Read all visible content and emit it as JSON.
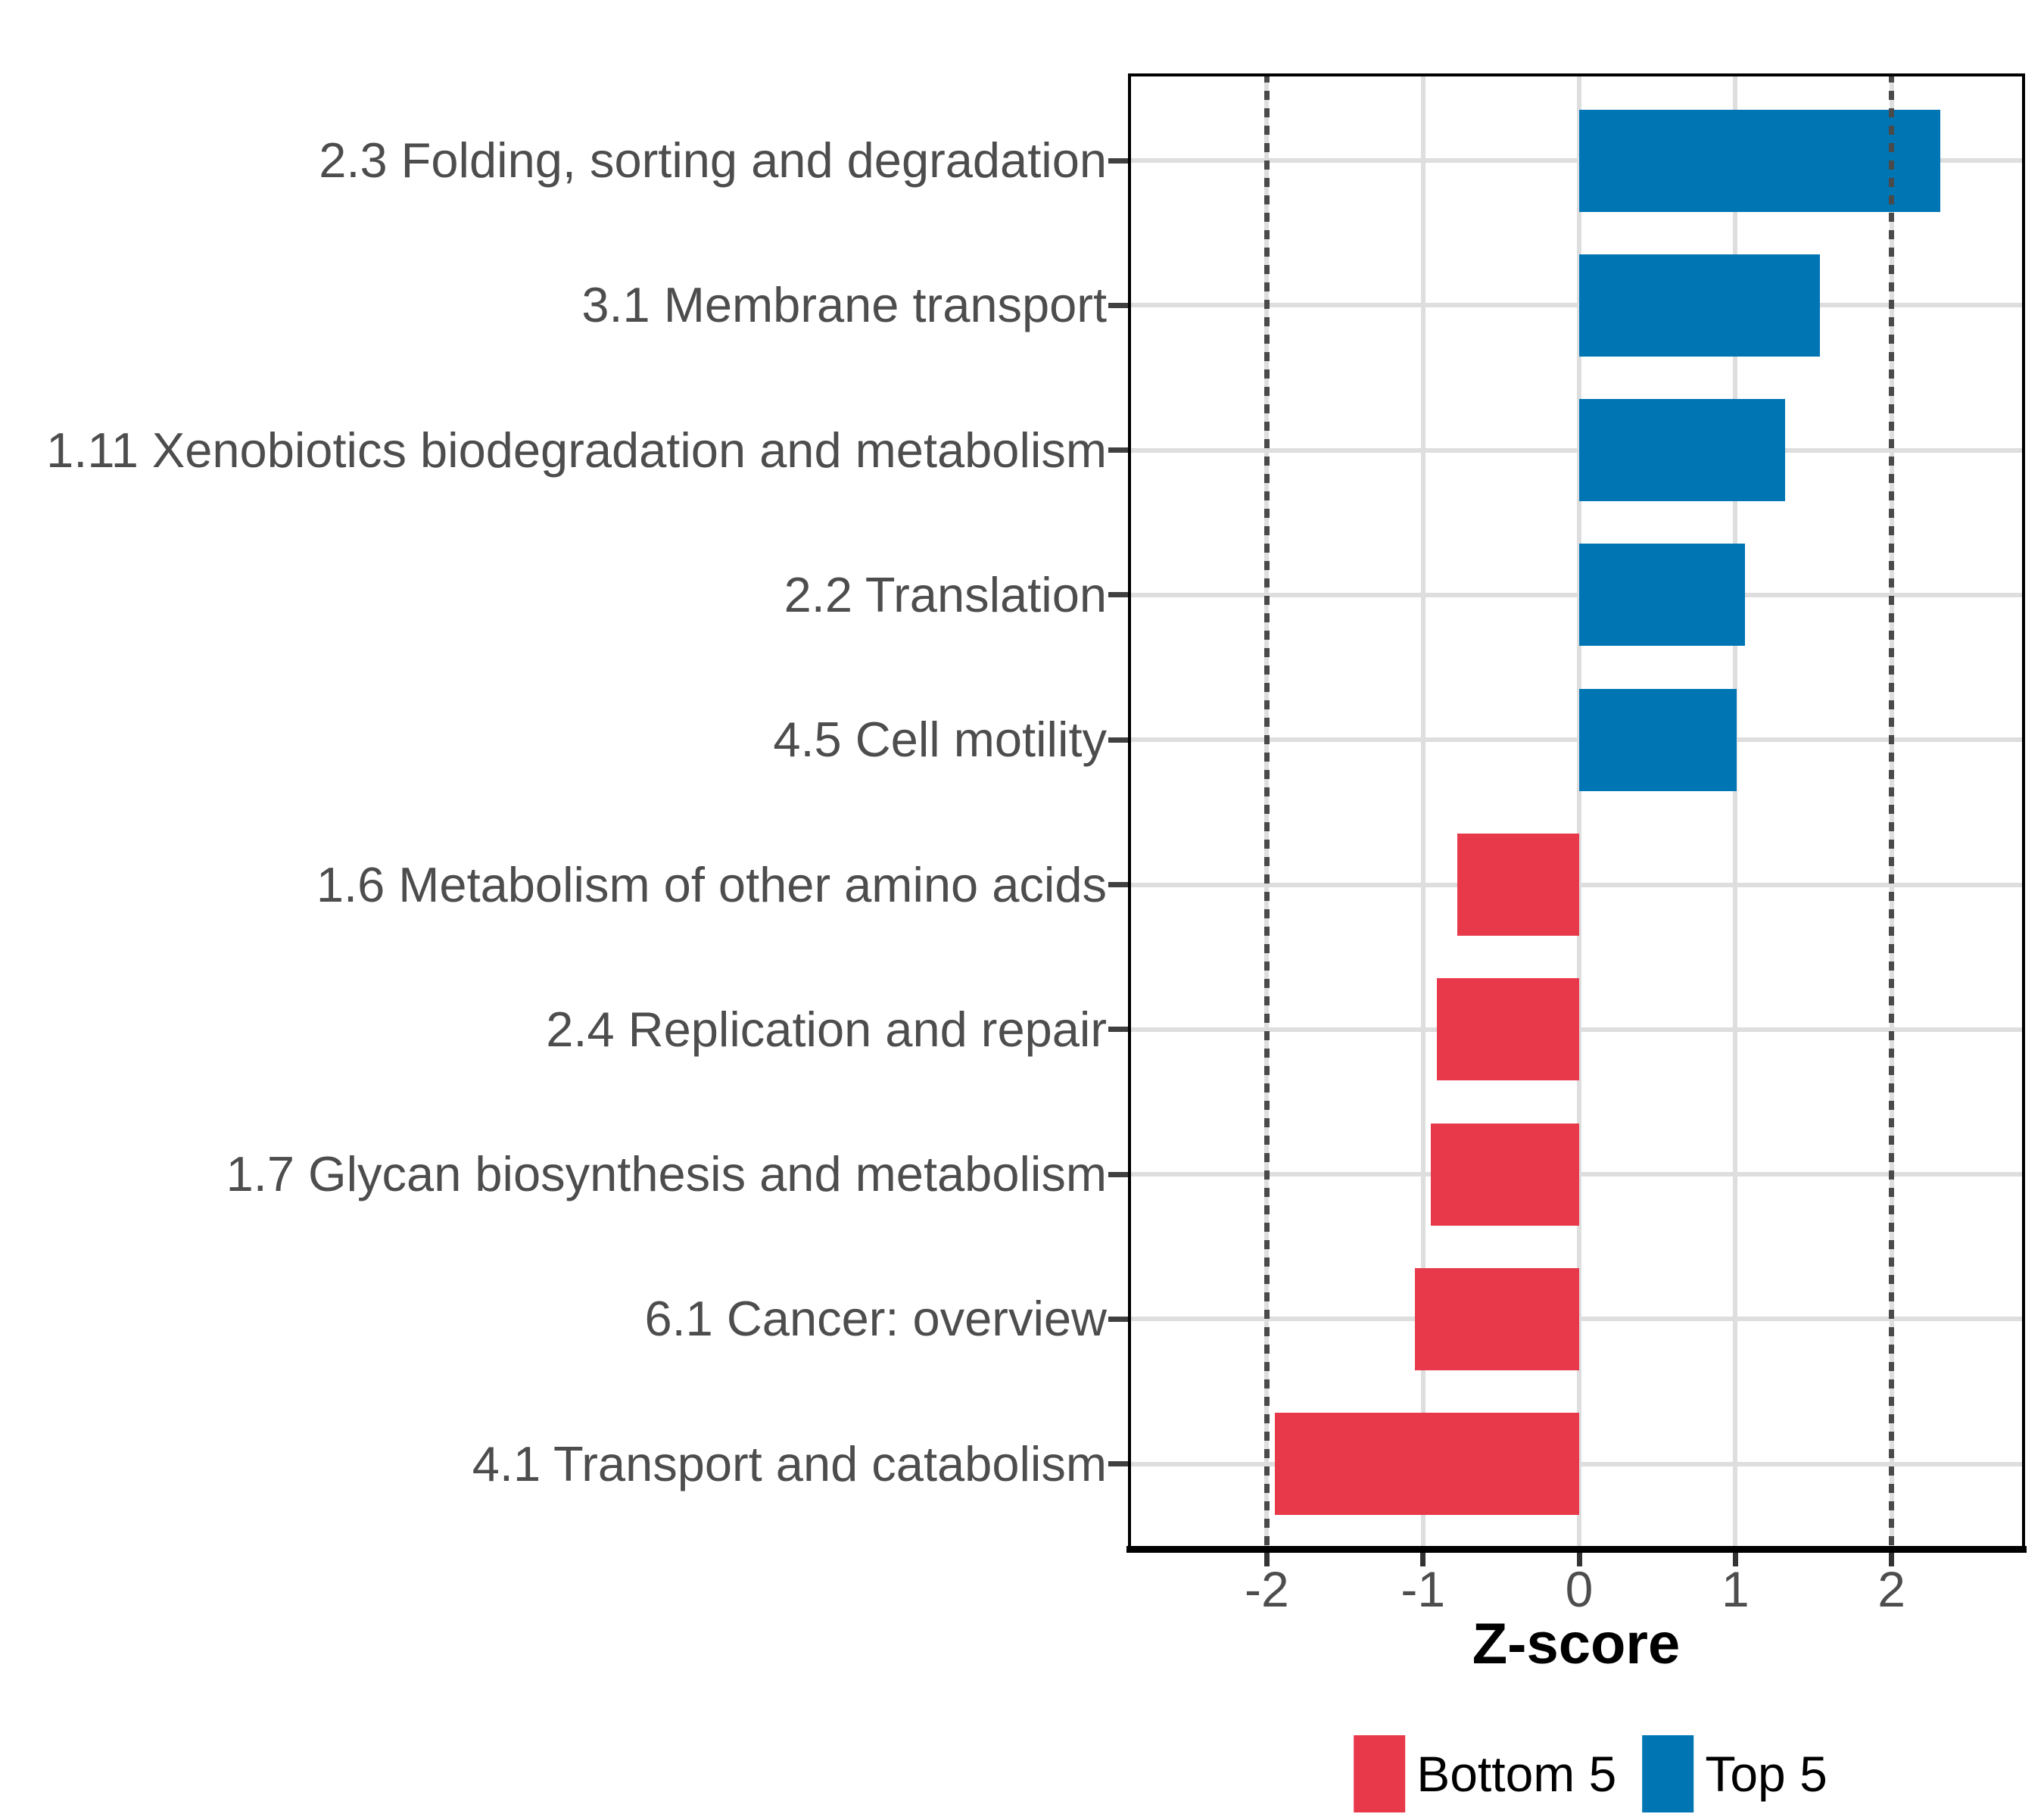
{
  "chart_data": {
    "type": "bar",
    "orientation": "horizontal",
    "title": "",
    "xlabel": "Z-score",
    "ylabel": "",
    "xticks": [
      -2,
      -1,
      0,
      1,
      2
    ],
    "xtick_labels": [
      "-2",
      "-1",
      "0",
      "1",
      "2"
    ],
    "xlim": [
      -2.89,
      2.86
    ],
    "grid": true,
    "legend_position": "bottom",
    "reference_lines": [
      -2,
      2
    ],
    "rows": [
      {
        "label": "2.3 Folding, sorting and degradation",
        "value": 2.31,
        "group": "Top 5"
      },
      {
        "label": "3.1 Membrane transport",
        "value": 1.54,
        "group": "Top 5"
      },
      {
        "label": "1.11 Xenobiotics biodegradation and metabolism",
        "value": 1.32,
        "group": "Top 5"
      },
      {
        "label": "2.2 Translation",
        "value": 1.06,
        "group": "Top 5"
      },
      {
        "label": "4.5 Cell motility",
        "value": 1.01,
        "group": "Top 5"
      },
      {
        "label": "1.6 Metabolism of other amino acids",
        "value": -0.78,
        "group": "Bottom 5"
      },
      {
        "label": "2.4 Replication and repair",
        "value": -0.91,
        "group": "Bottom 5"
      },
      {
        "label": "1.7 Glycan biosynthesis and metabolism",
        "value": -0.95,
        "group": "Bottom 5"
      },
      {
        "label": "6.1 Cancer: overview",
        "value": -1.05,
        "group": "Bottom 5"
      },
      {
        "label": "4.1 Transport and catabolism",
        "value": -1.95,
        "group": "Bottom 5"
      }
    ],
    "legend": [
      {
        "label": "Bottom 5",
        "color": "#E8394A"
      },
      {
        "label": "Top 5",
        "color": "#0075B4"
      }
    ],
    "colors": {
      "bottom5": "#E8394A",
      "top5": "#0075B4",
      "gridline": "#DEDEDE",
      "axis_text": "#4D4D4D",
      "axis_line": "#000000",
      "reference_line": "#4A4A4A",
      "background": "#FFFFFF"
    }
  }
}
